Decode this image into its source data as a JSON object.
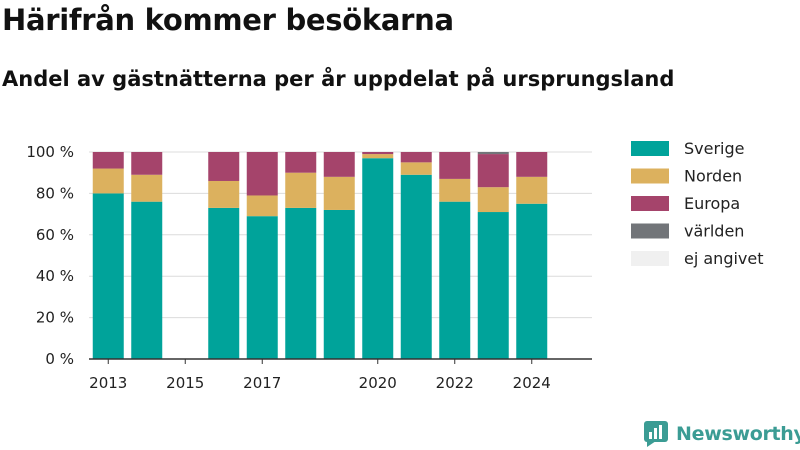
{
  "title": "Härifrån kommer besökarna",
  "subtitle": "Andel av gästnätterna per år uppdelat på ursprungsland",
  "brand": {
    "name": "Newsworthy",
    "icon": "newsworthy-logo-icon"
  },
  "chart_data": {
    "type": "bar",
    "stacked": true,
    "x": [
      2013,
      2014,
      2016,
      2017,
      2018,
      2019,
      2020,
      2021,
      2022,
      2023,
      2024
    ],
    "x_range": [
      2012.5,
      2024.9
    ],
    "x_ticks": [
      2013,
      2015,
      2017,
      2020,
      2022,
      2024
    ],
    "x_tick_labels": [
      "2013",
      "2015",
      "2017",
      "2020",
      "2022",
      "2024"
    ],
    "ylim": [
      0,
      100
    ],
    "y_ticks": [
      0,
      20,
      40,
      60,
      80,
      100
    ],
    "y_tick_labels": [
      "0 %",
      "20 %",
      "40 %",
      "60 %",
      "80 %",
      "100 %"
    ],
    "grid": true,
    "legend_position": "right",
    "series": [
      {
        "name": "Sverige",
        "color": "#00a39a",
        "values": [
          80,
          76,
          73,
          69,
          73,
          72,
          97,
          89,
          76,
          71,
          75
        ]
      },
      {
        "name": "Norden",
        "color": "#dcb15e",
        "values": [
          12,
          13,
          13,
          10,
          17,
          16,
          2,
          6,
          11,
          12,
          13
        ]
      },
      {
        "name": "Europa",
        "color": "#a5446b",
        "values": [
          8,
          11,
          14,
          21,
          10,
          12,
          1,
          5,
          13,
          16,
          12
        ]
      },
      {
        "name": "världen",
        "color": "#727579",
        "values": [
          0,
          0,
          0,
          0,
          0,
          0,
          0,
          0,
          0,
          1,
          0
        ]
      },
      {
        "name": "ej angivet",
        "color": "#f0f0f0",
        "values": [
          0,
          0,
          0,
          0,
          0,
          0,
          0,
          0,
          0,
          0,
          0
        ]
      }
    ]
  }
}
